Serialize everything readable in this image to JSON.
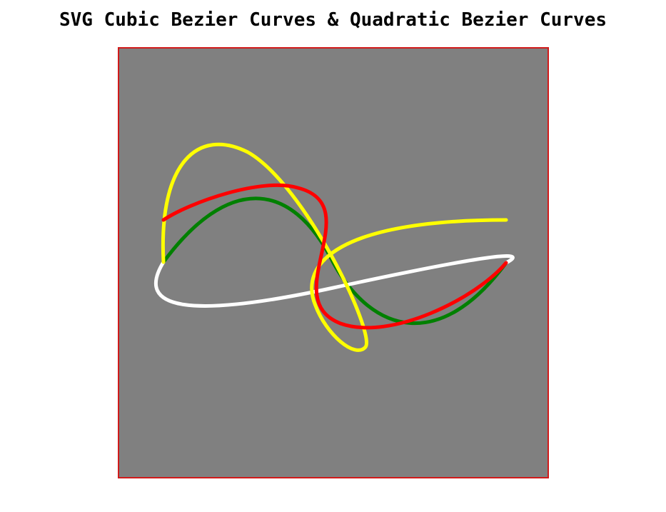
{
  "page": {
    "title": "SVG Cubic Bezier Curves & Quadratic Bezier Curves"
  },
  "canvas": {
    "background": "#808080",
    "border_color": "#d11a1a"
  },
  "curves": [
    {
      "name": "green-cubic-curve",
      "color": "#008000"
    },
    {
      "name": "white-quadratic-curve",
      "color": "#ffffff"
    },
    {
      "name": "yellow-cubic-curve",
      "color": "#ffff00"
    },
    {
      "name": "red-cubic-curve",
      "color": "#ff0000"
    }
  ]
}
